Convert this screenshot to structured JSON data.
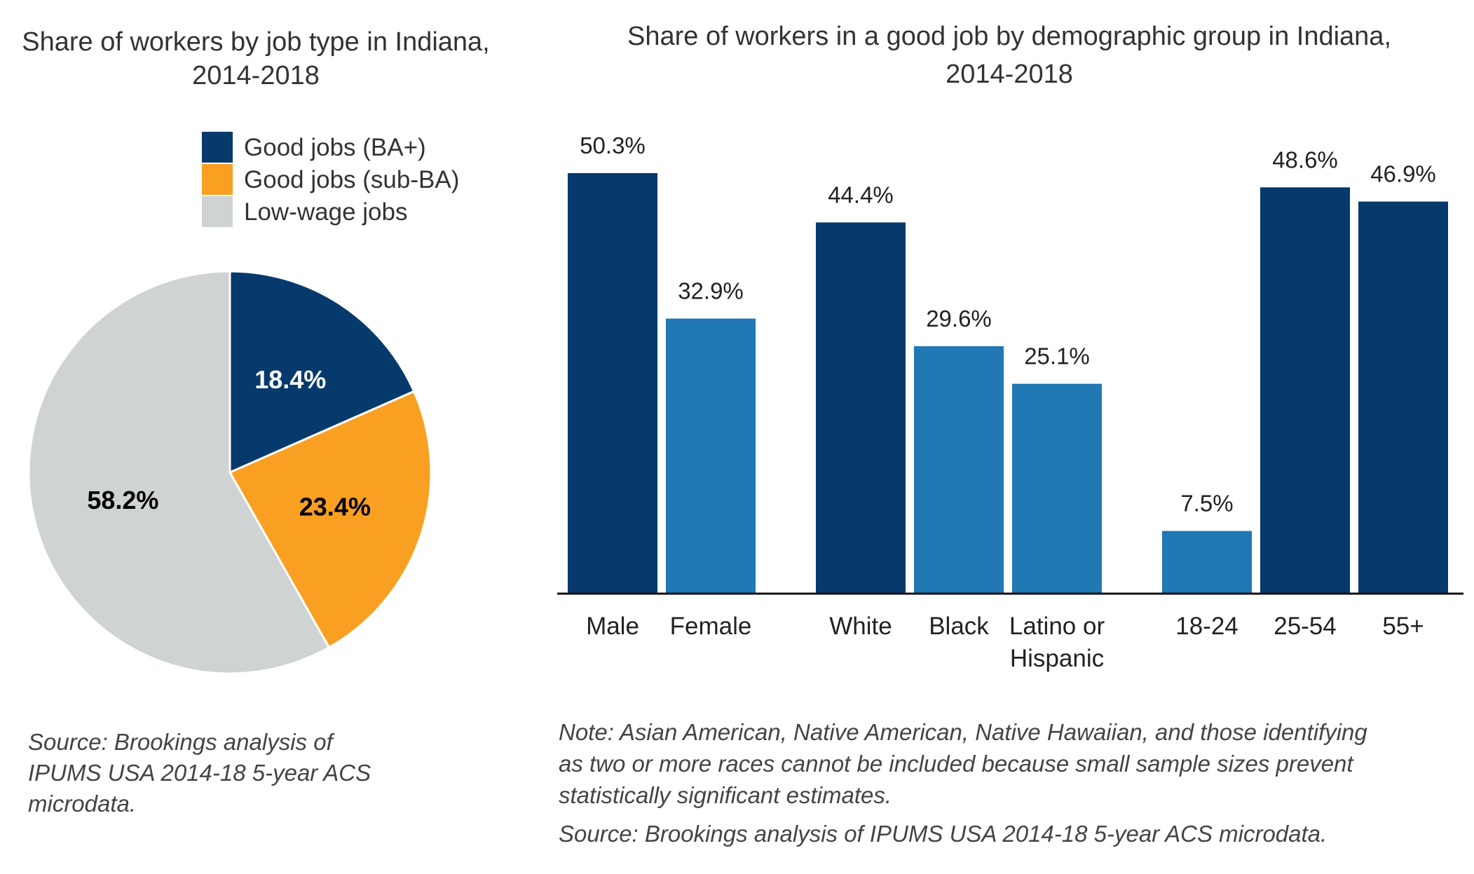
{
  "chart_data": [
    {
      "type": "pie",
      "title": "Share of workers by job type in Indiana, 2014-2018",
      "title_lines": [
        "Share of workers by job type in Indiana,",
        "2014-2018"
      ],
      "legend_position": "top-right",
      "slices": [
        {
          "label": "Good jobs (BA+)",
          "value": 18.4,
          "value_label": "18.4%",
          "color": "#063a6d",
          "label_color": "#ffffff"
        },
        {
          "label": "Good jobs (sub-BA)",
          "value": 23.4,
          "value_label": "23.4%",
          "color": "#f9a023",
          "label_color": "#000000"
        },
        {
          "label": "Low-wage jobs",
          "value": 58.2,
          "value_label": "58.2%",
          "color": "#d0d3d4",
          "label_color": "#000000"
        }
      ],
      "source": [
        "Source: Brookings analysis of",
        "IPUMS USA 2014-18 5-year ACS",
        "microdata."
      ]
    },
    {
      "type": "bar",
      "title": "Share of workers in a good job by demographic group in Indiana, 2014-2018",
      "title_lines": [
        "Share of workers in a good job by demographic group in Indiana,",
        "2014-2018"
      ],
      "ylim": [
        0,
        60
      ],
      "grid": false,
      "categories": [
        {
          "label": [
            "Male"
          ],
          "value": 50.3,
          "value_label": "50.3%",
          "color": "#063a6d",
          "group": 0
        },
        {
          "label": [
            "Female"
          ],
          "value": 32.9,
          "value_label": "32.9%",
          "color": "#2078b4",
          "group": 0
        },
        {
          "label": [
            "White"
          ],
          "value": 44.4,
          "value_label": "44.4%",
          "color": "#063a6d",
          "group": 1
        },
        {
          "label": [
            "Black"
          ],
          "value": 29.6,
          "value_label": "29.6%",
          "color": "#2078b4",
          "group": 1
        },
        {
          "label": [
            "Latino or",
            "Hispanic"
          ],
          "value": 25.1,
          "value_label": "25.1%",
          "color": "#2078b4",
          "group": 1
        },
        {
          "label": [
            "18-24"
          ],
          "value": 7.5,
          "value_label": "7.5%",
          "color": "#2078b4",
          "group": 2
        },
        {
          "label": [
            "25-54"
          ],
          "value": 48.6,
          "value_label": "48.6%",
          "color": "#063a6d",
          "group": 2
        },
        {
          "label": [
            "55+"
          ],
          "value": 46.9,
          "value_label": "46.9%",
          "color": "#063a6d",
          "group": 2
        }
      ],
      "note": [
        "Note: Asian American, Native American, Native Hawaiian, and those identifying",
        "as two or more races cannot be included because small sample sizes prevent",
        "statistically significant estimates."
      ],
      "source": "Source: Brookings analysis of IPUMS USA 2014-18 5-year ACS microdata."
    }
  ]
}
